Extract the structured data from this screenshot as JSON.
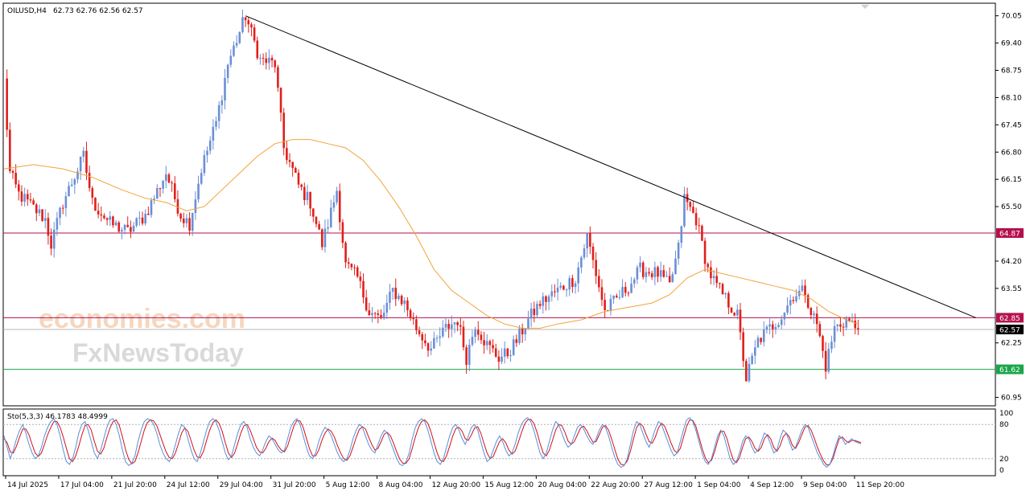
{
  "header": {
    "symbol_tf": "OILUSD,H4",
    "ohlc": "62.73 62.76 62.56 62.57"
  },
  "stoch": {
    "label": "Sto(5,3,3) 46.1783 48.4999",
    "levels": [
      "100",
      "80",
      "20",
      "0"
    ]
  },
  "watermark": {
    "line1": "economies.com",
    "line2": "FxNewsToday"
  },
  "colors": {
    "bull": "#6b8fd6",
    "bear": "#e0201b",
    "ma": "#f2a33a",
    "trend": "#000000",
    "resist": "#b5104d",
    "support": "#1aa64a",
    "grid": "#c8c8c8"
  },
  "chart_data": {
    "type": "candlestick",
    "symbol": "OILUSD",
    "timeframe": "H4",
    "ylim": [
      60.75,
      70.35
    ],
    "y_ticks": [
      "70.05",
      "69.40",
      "68.75",
      "68.10",
      "67.45",
      "66.80",
      "66.15",
      "65.50",
      "64.20",
      "63.55",
      "62.25",
      "60.95"
    ],
    "x_ticks": [
      "14 Jul 2025",
      "17 Jul 04:00",
      "21 Jul 20:00",
      "24 Jul 12:00",
      "29 Jul 04:00",
      "31 Jul 20:00",
      "5 Aug 12:00",
      "8 Aug 04:00",
      "12 Aug 20:00",
      "15 Aug 12:00",
      "20 Aug 04:00",
      "22 Aug 20:00",
      "27 Aug 12:00",
      "1 Sep 04:00",
      "4 Sep 12:00",
      "9 Sep 04:00",
      "11 Sep 20:00"
    ],
    "bar_count": 290,
    "horizontal_lines": [
      {
        "value": 64.87,
        "label": "64.87",
        "color": "#b5104d"
      },
      {
        "value": 62.85,
        "label": "62.85",
        "color": "#b5104d"
      },
      {
        "value": 61.62,
        "label": "61.62",
        "color": "#1aa64a"
      }
    ],
    "current_price": {
      "value": 62.57,
      "label": "62.57"
    },
    "trendline": {
      "start": {
        "bar": 82,
        "price": 70.05
      },
      "end": {
        "bar": 330,
        "price": 62.85
      }
    },
    "price_path": [
      [
        0,
        68.5
      ],
      [
        2,
        66.3
      ],
      [
        5,
        65.8
      ],
      [
        14,
        65.2
      ],
      [
        16,
        64.6
      ],
      [
        20,
        65.6
      ],
      [
        27,
        66.7
      ],
      [
        30,
        65.6
      ],
      [
        36,
        65.1
      ],
      [
        42,
        64.9
      ],
      [
        48,
        65.3
      ],
      [
        55,
        66.3
      ],
      [
        60,
        65.3
      ],
      [
        63,
        65.1
      ],
      [
        67,
        66.4
      ],
      [
        72,
        67.5
      ],
      [
        76,
        68.9
      ],
      [
        82,
        70.05
      ],
      [
        87,
        69.0
      ],
      [
        92,
        68.9
      ],
      [
        95,
        66.9
      ],
      [
        100,
        66.0
      ],
      [
        104,
        65.6
      ],
      [
        108,
        64.6
      ],
      [
        110,
        65.1
      ],
      [
        113,
        65.9
      ],
      [
        116,
        64.1
      ],
      [
        120,
        63.8
      ],
      [
        124,
        63.0
      ],
      [
        128,
        62.8
      ],
      [
        132,
        63.5
      ],
      [
        136,
        63.2
      ],
      [
        140,
        62.6
      ],
      [
        145,
        62.1
      ],
      [
        150,
        62.6
      ],
      [
        154,
        62.8
      ],
      [
        157,
        61.9
      ],
      [
        160,
        62.7
      ],
      [
        164,
        62.2
      ],
      [
        168,
        61.9
      ],
      [
        171,
        62.0
      ],
      [
        174,
        62.3
      ],
      [
        178,
        62.8
      ],
      [
        182,
        63.2
      ],
      [
        186,
        63.4
      ],
      [
        190,
        63.6
      ],
      [
        194,
        63.8
      ],
      [
        198,
        64.8
      ],
      [
        200,
        64.2
      ],
      [
        204,
        63.0
      ],
      [
        208,
        63.3
      ],
      [
        212,
        63.6
      ],
      [
        216,
        64.0
      ],
      [
        222,
        63.9
      ],
      [
        226,
        63.6
      ],
      [
        229,
        64.5
      ],
      [
        231,
        65.7
      ],
      [
        235,
        65.2
      ],
      [
        239,
        64.0
      ],
      [
        242,
        63.6
      ],
      [
        246,
        63.2
      ],
      [
        249,
        62.9
      ],
      [
        252,
        61.4
      ],
      [
        256,
        62.3
      ],
      [
        260,
        62.6
      ],
      [
        264,
        62.9
      ],
      [
        268,
        63.4
      ],
      [
        272,
        63.5
      ],
      [
        274,
        63.0
      ],
      [
        276,
        62.7
      ],
      [
        279,
        61.7
      ],
      [
        282,
        62.6
      ],
      [
        286,
        62.8
      ],
      [
        290,
        62.57
      ]
    ],
    "ma_points": [
      [
        0,
        66.4
      ],
      [
        10,
        66.5
      ],
      [
        20,
        66.4
      ],
      [
        30,
        66.2
      ],
      [
        40,
        65.9
      ],
      [
        48,
        65.7
      ],
      [
        55,
        65.6
      ],
      [
        62,
        65.4
      ],
      [
        68,
        65.5
      ],
      [
        74,
        65.9
      ],
      [
        80,
        66.3
      ],
      [
        86,
        66.7
      ],
      [
        92,
        67.0
      ],
      [
        98,
        67.1
      ],
      [
        104,
        67.1
      ],
      [
        110,
        67.0
      ],
      [
        116,
        66.9
      ],
      [
        122,
        66.6
      ],
      [
        128,
        66.1
      ],
      [
        134,
        65.5
      ],
      [
        140,
        64.8
      ],
      [
        146,
        64.0
      ],
      [
        152,
        63.5
      ],
      [
        158,
        63.2
      ],
      [
        164,
        62.9
      ],
      [
        170,
        62.7
      ],
      [
        176,
        62.6
      ],
      [
        182,
        62.6
      ],
      [
        188,
        62.7
      ],
      [
        196,
        62.8
      ],
      [
        204,
        63.0
      ],
      [
        212,
        63.1
      ],
      [
        220,
        63.2
      ],
      [
        226,
        63.4
      ],
      [
        232,
        63.8
      ],
      [
        238,
        64.0
      ],
      [
        244,
        63.9
      ],
      [
        250,
        63.8
      ],
      [
        256,
        63.7
      ],
      [
        262,
        63.6
      ],
      [
        268,
        63.5
      ],
      [
        274,
        63.3
      ],
      [
        280,
        63.0
      ],
      [
        286,
        62.8
      ],
      [
        290,
        62.7
      ]
    ],
    "stoch_range": [
      0,
      100
    ],
    "stoch_k": [
      60,
      40,
      20,
      35,
      55,
      70,
      80,
      65,
      45,
      30,
      20,
      25,
      40,
      60,
      75,
      85,
      90,
      80,
      60,
      35,
      15,
      10,
      20,
      40,
      65,
      80,
      85,
      70,
      50,
      30,
      20,
      35,
      55,
      75,
      88,
      90,
      80,
      60,
      35,
      15,
      8,
      12,
      25,
      50,
      70,
      85,
      90,
      88,
      80,
      65,
      45,
      30,
      20,
      15,
      25,
      45,
      65,
      80,
      75,
      55,
      35,
      20,
      15,
      30,
      50,
      70,
      85,
      90,
      85,
      70,
      50,
      30,
      18,
      25,
      45,
      65,
      80,
      85,
      75,
      55,
      40,
      30,
      25,
      35,
      50,
      60,
      55,
      45,
      35,
      30,
      35,
      55,
      75,
      85,
      90,
      80,
      60,
      40,
      25,
      20,
      30,
      50,
      65,
      75,
      70,
      60,
      45,
      30,
      20,
      15,
      20,
      35,
      55,
      70,
      80,
      75,
      60,
      45,
      35,
      30,
      45,
      60,
      70,
      65,
      50,
      35,
      20,
      10,
      8,
      15,
      30,
      55,
      75,
      85,
      90,
      85,
      70,
      50,
      30,
      15,
      10,
      20,
      40,
      60,
      75,
      80,
      70,
      55,
      45,
      60,
      75,
      80,
      70,
      50,
      30,
      15,
      20,
      35,
      50,
      60,
      50,
      35,
      25,
      30,
      45,
      65,
      80,
      88,
      92,
      85,
      70,
      50,
      30,
      20,
      30,
      50,
      70,
      85,
      80,
      65,
      50,
      40,
      45,
      60,
      75,
      80,
      72,
      60,
      50,
      45,
      55,
      70,
      80,
      75,
      60,
      40,
      22,
      10,
      5,
      8,
      20,
      45,
      70,
      85,
      80,
      65,
      50,
      40,
      55,
      72,
      85,
      80,
      65,
      50,
      35,
      25,
      30,
      50,
      70,
      88,
      92,
      85,
      70,
      50,
      30,
      15,
      10,
      20,
      40,
      60,
      70,
      60,
      40,
      20,
      10,
      15,
      30,
      50,
      60,
      55,
      40,
      30,
      35,
      50,
      65,
      60,
      45,
      30,
      35,
      55,
      70,
      65,
      50,
      35,
      40,
      55,
      70,
      80,
      75,
      60,
      45,
      30,
      20,
      10,
      5,
      10,
      25,
      45,
      60,
      55,
      45,
      50,
      55,
      50,
      48,
      46
    ],
    "stoch_d": [
      55,
      48,
      32,
      30,
      42,
      58,
      72,
      72,
      62,
      45,
      30,
      24,
      30,
      45,
      62,
      75,
      85,
      85,
      75,
      58,
      38,
      20,
      15,
      25,
      42,
      62,
      78,
      80,
      70,
      50,
      33,
      28,
      38,
      57,
      74,
      85,
      88,
      78,
      58,
      36,
      19,
      11,
      15,
      30,
      50,
      70,
      83,
      88,
      86,
      78,
      63,
      47,
      32,
      22,
      20,
      30,
      47,
      65,
      74,
      68,
      52,
      35,
      23,
      22,
      33,
      52,
      70,
      83,
      88,
      82,
      68,
      48,
      30,
      22,
      30,
      47,
      65,
      78,
      80,
      70,
      55,
      40,
      32,
      30,
      38,
      50,
      56,
      52,
      42,
      35,
      32,
      42,
      60,
      77,
      87,
      86,
      75,
      56,
      38,
      25,
      25,
      35,
      52,
      65,
      72,
      68,
      58,
      43,
      30,
      20,
      17,
      25,
      40,
      57,
      71,
      76,
      72,
      58,
      45,
      35,
      38,
      50,
      63,
      66,
      60,
      47,
      32,
      19,
      12,
      12,
      20,
      38,
      58,
      75,
      85,
      88,
      82,
      67,
      48,
      30,
      17,
      15,
      25,
      42,
      60,
      73,
      75,
      68,
      55,
      52,
      62,
      74,
      76,
      65,
      47,
      30,
      20,
      24,
      37,
      50,
      55,
      48,
      35,
      28,
      33,
      48,
      65,
      80,
      88,
      89,
      82,
      67,
      47,
      30,
      25,
      35,
      52,
      70,
      80,
      78,
      66,
      51,
      45,
      50,
      62,
      74,
      77,
      69,
      58,
      49,
      50,
      62,
      75,
      78,
      70,
      54,
      36,
      19,
      10,
      9,
      16,
      33,
      55,
      75,
      82,
      77,
      63,
      50,
      47,
      58,
      74,
      82,
      77,
      63,
      48,
      35,
      30,
      38,
      57,
      76,
      88,
      87,
      77,
      58,
      38,
      22,
      13,
      17,
      32,
      52,
      68,
      68,
      55,
      35,
      18,
      13,
      22,
      40,
      55,
      58,
      50,
      38,
      33,
      40,
      55,
      62,
      55,
      40,
      33,
      42,
      58,
      65,
      58,
      43,
      38,
      48,
      62,
      75,
      78,
      70,
      56,
      40,
      27,
      16,
      9,
      10,
      20,
      38,
      55,
      58,
      52,
      48,
      52,
      52,
      50,
      48
    ]
  }
}
